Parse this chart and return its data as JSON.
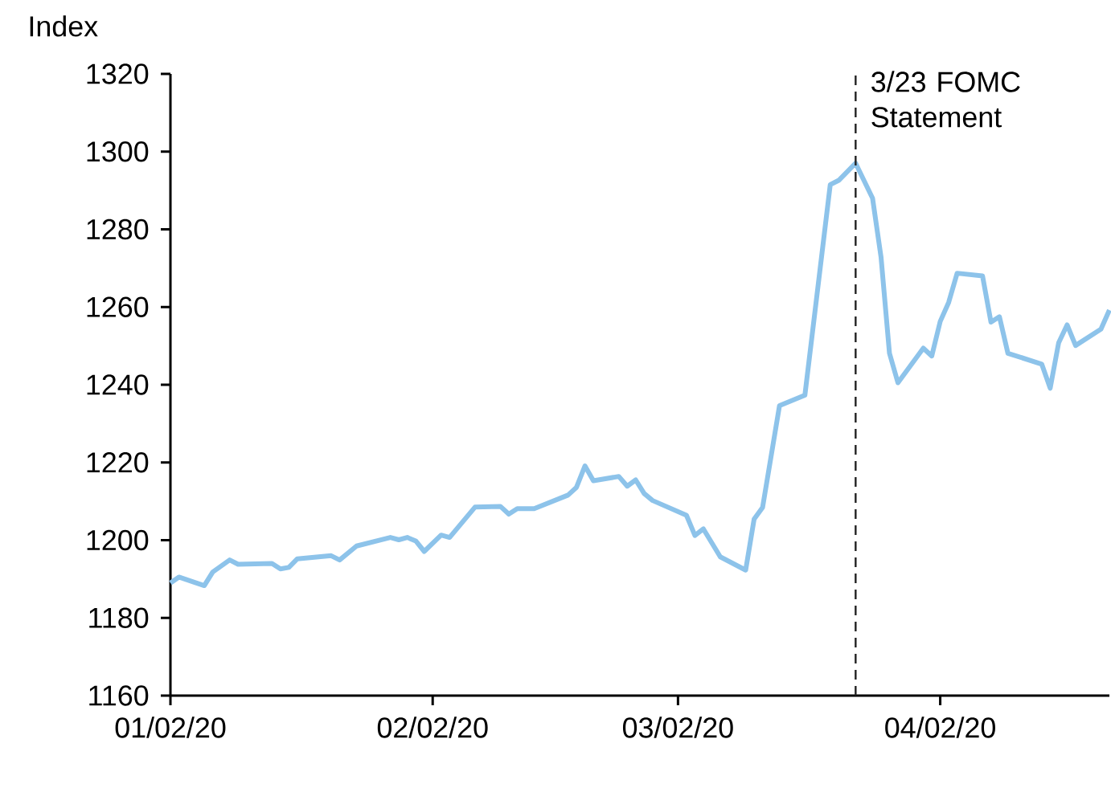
{
  "chart_data": {
    "type": "line",
    "ylabel": "Index",
    "x": [
      "2020-01-02",
      "2020-01-03",
      "2020-01-06",
      "2020-01-07",
      "2020-01-09",
      "2020-01-10",
      "2020-01-14",
      "2020-01-15",
      "2020-01-16",
      "2020-01-17",
      "2020-01-21",
      "2020-01-22",
      "2020-01-24",
      "2020-01-28",
      "2020-01-29",
      "2020-01-30",
      "2020-01-31",
      "2020-02-01",
      "2020-02-03",
      "2020-02-04",
      "2020-02-07",
      "2020-02-10",
      "2020-02-11",
      "2020-02-12",
      "2020-02-14",
      "2020-02-18",
      "2020-02-19",
      "2020-02-20",
      "2020-02-21",
      "2020-02-24",
      "2020-02-25",
      "2020-02-26",
      "2020-02-27",
      "2020-02-28",
      "2020-03-03",
      "2020-03-04",
      "2020-03-05",
      "2020-03-07",
      "2020-03-10",
      "2020-03-11",
      "2020-03-12",
      "2020-03-14",
      "2020-03-17",
      "2020-03-20",
      "2020-03-21",
      "2020-03-23",
      "2020-03-25",
      "2020-03-26",
      "2020-03-27",
      "2020-03-28",
      "2020-03-31",
      "2020-04-01",
      "2020-04-02",
      "2020-04-03",
      "2020-04-04",
      "2020-04-07",
      "2020-04-08",
      "2020-04-09",
      "2020-04-10",
      "2020-04-14",
      "2020-04-15",
      "2020-04-16",
      "2020-04-17",
      "2020-04-18",
      "2020-04-21",
      "2020-04-22"
    ],
    "series": [
      {
        "color": "#8dc3ea",
        "values": [
          1189,
          1190.5,
          1188.3,
          1191.8,
          1194.9,
          1193.8,
          1194,
          1192.6,
          1193,
          1195.2,
          1196,
          1194.9,
          1198.5,
          1200.7,
          1200.1,
          1200.7,
          1199.8,
          1197.1,
          1201.3,
          1200.7,
          1208.5,
          1208.7,
          1206.7,
          1208.1,
          1208.1,
          1211.6,
          1213.6,
          1219.1,
          1215.3,
          1216.4,
          1213.9,
          1215.5,
          1212,
          1210.2,
          1206.4,
          1201.2,
          1202.9,
          1195.7,
          1192.3,
          1205.4,
          1208.4,
          1234.6,
          1237.3,
          1291.5,
          1292.6,
          1297,
          1288,
          1272.9,
          1248.1,
          1240.5,
          1249.4,
          1247.4,
          1256.3,
          1261.2,
          1268.7,
          1268,
          1256.1,
          1257.5,
          1248.1,
          1245.3,
          1239.1,
          1250.8,
          1255.4,
          1250.1,
          1254.3,
          1259.2
        ]
      }
    ],
    "xlim": [
      "2020-01-02",
      "2020-04-22"
    ],
    "xticks": [
      {
        "value": "2020-01-02",
        "label": "01/02/20"
      },
      {
        "value": "2020-02-02",
        "label": "02/02/20"
      },
      {
        "value": "2020-03-02",
        "label": "03/02/20"
      },
      {
        "value": "2020-04-02",
        "label": "04/02/20"
      }
    ],
    "ylim": [
      1160,
      1320
    ],
    "yticks": [
      1160,
      1180,
      1200,
      1220,
      1240,
      1260,
      1280,
      1300,
      1320
    ],
    "ref_lines": [
      {
        "axis": "x",
        "value": "2020-03-23",
        "label": "3/23 FOMC Statement",
        "color": "#222222",
        "line_style": "dashed"
      }
    ]
  }
}
